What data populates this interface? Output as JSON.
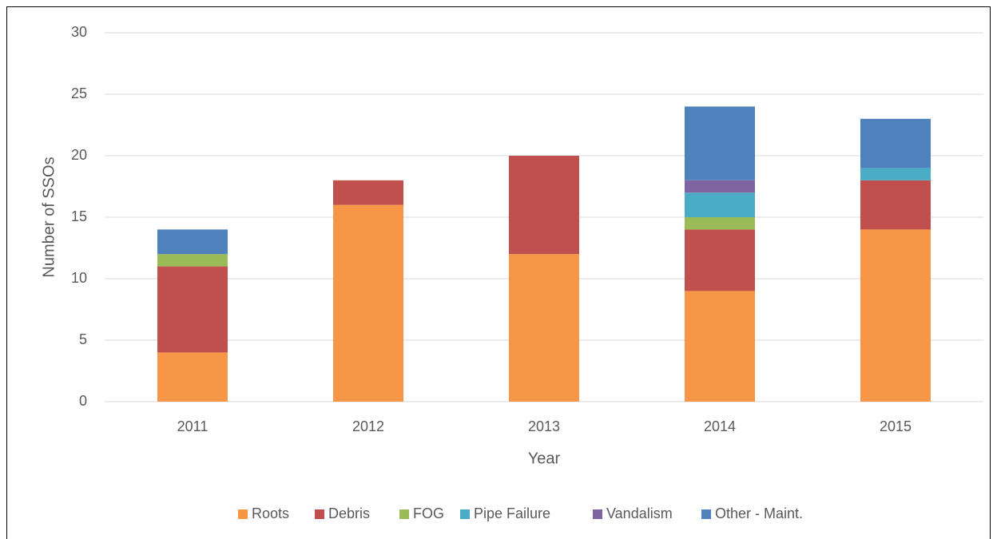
{
  "chart_data": {
    "type": "stacked_bar",
    "x_label": "Year",
    "y_label": "Number of SSOs",
    "categories": [
      "2011",
      "2012",
      "2013",
      "2014",
      "2015"
    ],
    "series": [
      {
        "name": "Roots",
        "color": "#f79646",
        "values": [
          4,
          16,
          12,
          9,
          14
        ]
      },
      {
        "name": "Debris",
        "color": "#c0504d",
        "values": [
          7,
          2,
          8,
          5,
          4
        ]
      },
      {
        "name": "FOG",
        "color": "#9bbb59",
        "values": [
          1,
          0,
          0,
          1,
          0
        ]
      },
      {
        "name": "Pipe Failure",
        "color": "#4bacc6",
        "values": [
          0,
          0,
          0,
          2,
          1
        ]
      },
      {
        "name": "Vandalism",
        "color": "#8064a2",
        "values": [
          0,
          0,
          0,
          1,
          0
        ]
      },
      {
        "name": "Other - Maint.",
        "color": "#4f81bd",
        "values": [
          2,
          0,
          0,
          6,
          4
        ]
      }
    ],
    "ylim": [
      0,
      30
    ],
    "yticks": [
      0,
      5,
      10,
      15,
      20,
      25,
      30
    ],
    "grid": true,
    "legend": "bottom"
  }
}
